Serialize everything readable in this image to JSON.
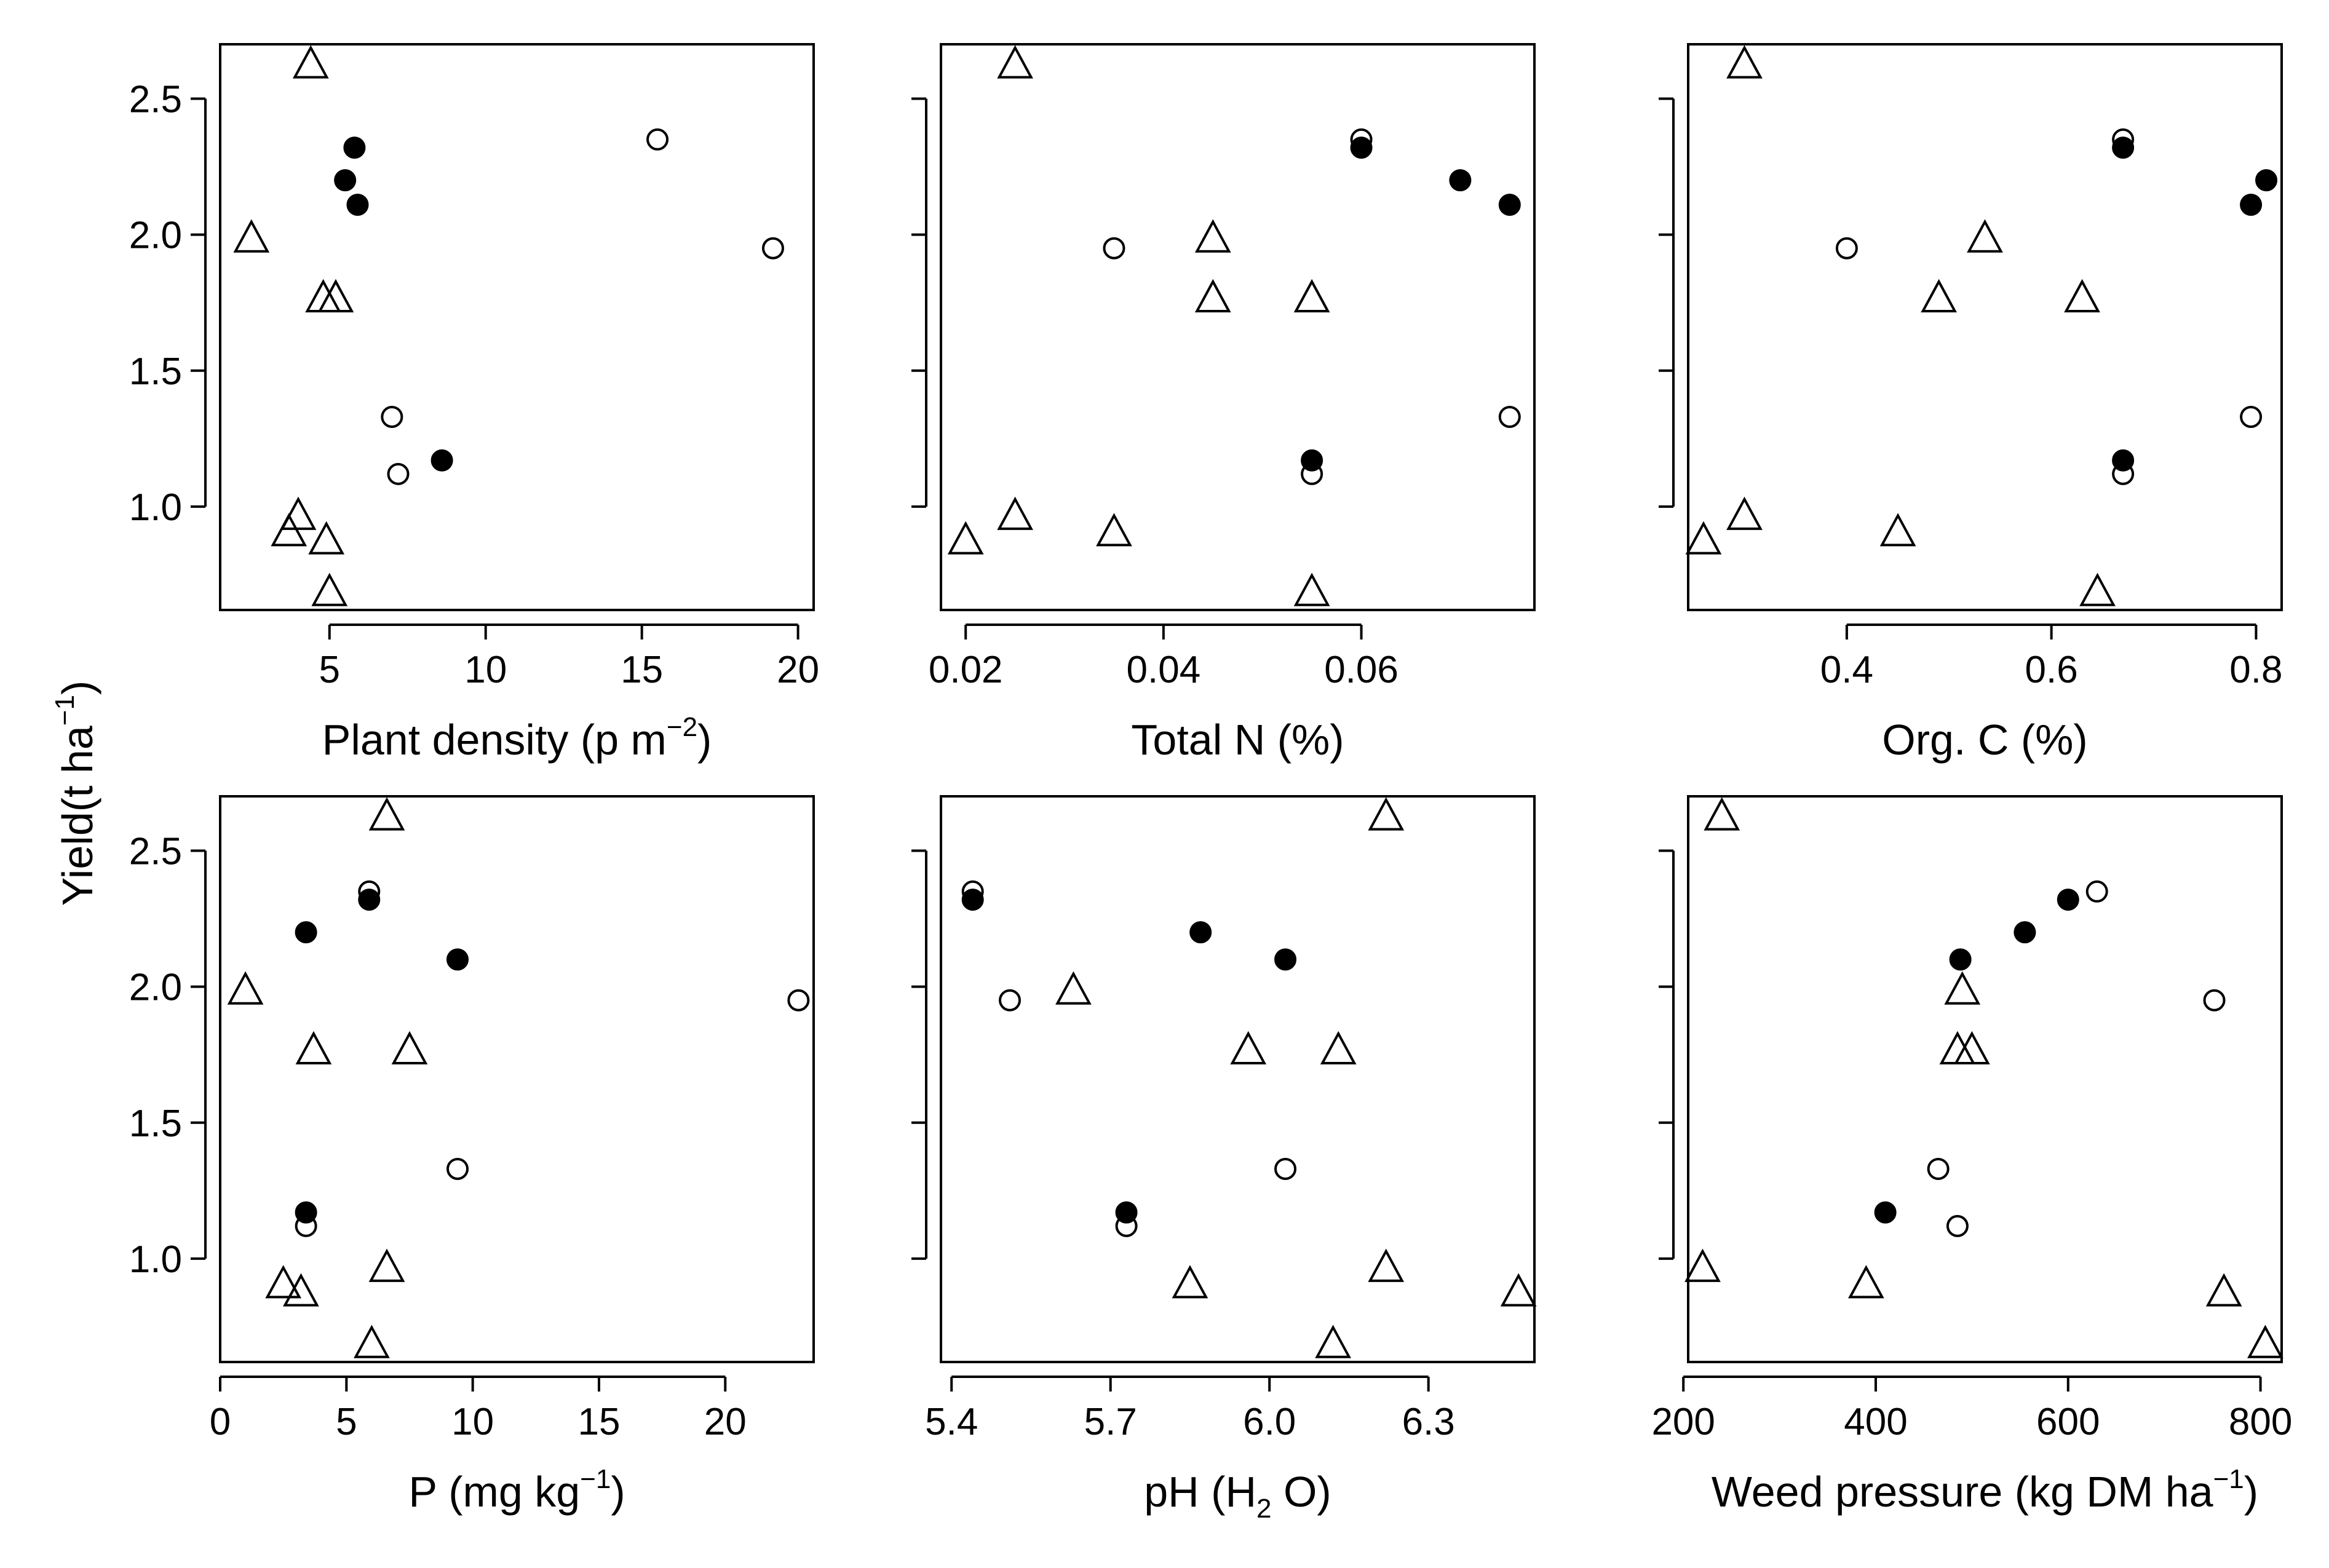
{
  "figure": {
    "shared_ylabel": "Yield(t ha",
    "shared_ylabel_sup": "−1",
    "shared_ylabel_close": ")",
    "colors": {
      "axis": "#000000",
      "marker_fill_solid": "#000000",
      "marker_fill_hollow": "#ffffff"
    }
  },
  "chart_data": [
    {
      "type": "scatter",
      "id": "plant-density",
      "xlabel": {
        "pre": "Plant density (p m",
        "sup": "−2",
        "post": ")"
      },
      "xlim": [
        1.5,
        20.5
      ],
      "xticks": [
        5,
        10,
        15,
        20
      ],
      "xtick_labels": [
        "5",
        "10",
        "15",
        "20"
      ],
      "ylim": [
        0.62,
        2.7
      ],
      "yticks": [
        1.0,
        1.5,
        2.0,
        2.5
      ],
      "ytick_labels": [
        "1.0",
        "1.5",
        "2.0",
        "2.5"
      ],
      "series": [
        {
          "name": "triangles",
          "marker": "triangle-open",
          "x": [
            4.4,
            2.5,
            4.8,
            5.2,
            4.0,
            3.7,
            4.9,
            5.0
          ],
          "y": [
            2.62,
            1.98,
            1.76,
            1.76,
            0.96,
            0.9,
            0.87,
            0.68
          ]
        },
        {
          "name": "open-circles",
          "marker": "circle-open",
          "x": [
            15.5,
            19.2,
            7.0,
            7.2
          ],
          "y": [
            2.35,
            1.95,
            1.33,
            1.12
          ]
        },
        {
          "name": "filled-circles",
          "marker": "circle-filled",
          "x": [
            5.8,
            5.5,
            5.9,
            8.6
          ],
          "y": [
            2.32,
            2.2,
            2.11,
            1.17
          ]
        }
      ]
    },
    {
      "type": "scatter",
      "id": "total-n",
      "xlabel": {
        "pre": "Total N (%)",
        "sup": "",
        "post": ""
      },
      "xlim": [
        0.0175,
        0.0775
      ],
      "xticks": [
        0.02,
        0.04,
        0.06
      ],
      "xtick_labels": [
        "0.02",
        "0.04",
        "0.06"
      ],
      "ylim": [
        0.62,
        2.7
      ],
      "yticks": [
        1.0,
        1.5,
        2.0,
        2.5
      ],
      "ytick_labels": [
        "",
        "",
        "",
        ""
      ],
      "series": [
        {
          "name": "triangles",
          "marker": "triangle-open",
          "x": [
            0.025,
            0.045,
            0.045,
            0.055,
            0.025,
            0.035,
            0.02,
            0.055
          ],
          "y": [
            2.62,
            1.98,
            1.76,
            1.76,
            0.96,
            0.9,
            0.87,
            0.68
          ]
        },
        {
          "name": "open-circles",
          "marker": "circle-open",
          "x": [
            0.06,
            0.035,
            0.075,
            0.055
          ],
          "y": [
            2.35,
            1.95,
            1.33,
            1.12
          ]
        },
        {
          "name": "filled-circles",
          "marker": "circle-filled",
          "x": [
            0.06,
            0.07,
            0.075,
            0.055
          ],
          "y": [
            2.32,
            2.2,
            2.11,
            1.17
          ]
        }
      ]
    },
    {
      "type": "scatter",
      "id": "org-c",
      "xlabel": {
        "pre": "Org. C (%)",
        "sup": "",
        "post": ""
      },
      "xlim": [
        0.245,
        0.825
      ],
      "xticks": [
        0.4,
        0.6,
        0.8
      ],
      "xtick_labels": [
        "0.4",
        "0.6",
        "0.8"
      ],
      "ylim": [
        0.62,
        2.7
      ],
      "yticks": [
        1.0,
        1.5,
        2.0,
        2.5
      ],
      "ytick_labels": [
        "",
        "",
        "",
        ""
      ],
      "series": [
        {
          "name": "triangles",
          "marker": "triangle-open",
          "x": [
            0.3,
            0.535,
            0.49,
            0.63,
            0.3,
            0.45,
            0.26,
            0.645
          ],
          "y": [
            2.62,
            1.98,
            1.76,
            1.76,
            0.96,
            0.9,
            0.87,
            0.68
          ]
        },
        {
          "name": "open-circles",
          "marker": "circle-open",
          "x": [
            0.67,
            0.4,
            0.795,
            0.67
          ],
          "y": [
            2.35,
            1.95,
            1.33,
            1.12
          ]
        },
        {
          "name": "filled-circles",
          "marker": "circle-filled",
          "x": [
            0.67,
            0.81,
            0.795,
            0.67
          ],
          "y": [
            2.32,
            2.2,
            2.11,
            1.17
          ]
        }
      ]
    },
    {
      "type": "scatter",
      "id": "phosphorus",
      "xlabel": {
        "pre": "P (mg kg",
        "sup": "−1",
        "post": ")"
      },
      "xlim": [
        0.0,
        23.5
      ],
      "xticks": [
        0,
        5,
        10,
        15,
        20
      ],
      "xtick_labels": [
        "0",
        "5",
        "10",
        "15",
        "20"
      ],
      "ylim": [
        0.62,
        2.7
      ],
      "yticks": [
        1.0,
        1.5,
        2.0,
        2.5
      ],
      "ytick_labels": [
        "1.0",
        "1.5",
        "2.0",
        "2.5"
      ],
      "series": [
        {
          "name": "triangles",
          "marker": "triangle-open",
          "x": [
            6.6,
            1.0,
            3.7,
            7.5,
            6.6,
            2.5,
            3.2,
            6.0
          ],
          "y": [
            2.62,
            1.98,
            1.76,
            1.76,
            0.96,
            0.9,
            0.87,
            0.68
          ]
        },
        {
          "name": "open-circles",
          "marker": "circle-open",
          "x": [
            5.9,
            22.9,
            9.4,
            3.4
          ],
          "y": [
            2.35,
            1.95,
            1.33,
            1.12
          ]
        },
        {
          "name": "filled-circles",
          "marker": "circle-filled",
          "x": [
            5.9,
            3.4,
            9.4,
            3.4
          ],
          "y": [
            2.32,
            2.2,
            2.1,
            1.17
          ]
        }
      ]
    },
    {
      "type": "scatter",
      "id": "ph",
      "xlabel": {
        "pre": "pH (H",
        "sub": "2",
        "post": " O)"
      },
      "xlim": [
        5.38,
        6.5
      ],
      "xticks": [
        5.4,
        5.7,
        6.0,
        6.3
      ],
      "xtick_labels": [
        "5.4",
        "5.7",
        "6.0",
        "6.3"
      ],
      "ylim": [
        0.62,
        2.7
      ],
      "yticks": [
        1.0,
        1.5,
        2.0,
        2.5
      ],
      "ytick_labels": [
        "",
        "",
        "",
        ""
      ],
      "series": [
        {
          "name": "triangles",
          "marker": "triangle-open",
          "x": [
            6.22,
            5.63,
            5.96,
            6.13,
            6.22,
            5.85,
            6.47,
            6.12
          ],
          "y": [
            2.62,
            1.98,
            1.76,
            1.76,
            0.96,
            0.9,
            0.87,
            0.68
          ]
        },
        {
          "name": "open-circles",
          "marker": "circle-open",
          "x": [
            5.44,
            5.51,
            6.03,
            5.73
          ],
          "y": [
            2.35,
            1.95,
            1.33,
            1.12
          ]
        },
        {
          "name": "filled-circles",
          "marker": "circle-filled",
          "x": [
            5.44,
            5.87,
            6.03,
            5.73
          ],
          "y": [
            2.32,
            2.2,
            2.1,
            1.17
          ]
        }
      ]
    },
    {
      "type": "scatter",
      "id": "weed-pressure",
      "xlabel": {
        "pre": "Weed pressure (kg DM ha",
        "sup": "−1",
        "post": ")"
      },
      "xlim": [
        205,
        822
      ],
      "xticks": [
        200,
        400,
        600,
        800
      ],
      "xtick_labels": [
        "200",
        "400",
        "600",
        "800"
      ],
      "ylim": [
        0.62,
        2.7
      ],
      "yticks": [
        1.0,
        1.5,
        2.0,
        2.5
      ],
      "ytick_labels": [
        "",
        "",
        "",
        ""
      ],
      "series": [
        {
          "name": "triangles",
          "marker": "triangle-open",
          "x": [
            240,
            490,
            485,
            500,
            220,
            390,
            762,
            805
          ],
          "y": [
            2.62,
            1.98,
            1.76,
            1.76,
            0.96,
            0.9,
            0.87,
            0.68
          ]
        },
        {
          "name": "open-circles",
          "marker": "circle-open",
          "x": [
            630,
            752,
            465,
            485
          ],
          "y": [
            2.35,
            1.95,
            1.33,
            1.12
          ]
        },
        {
          "name": "filled-circles",
          "marker": "circle-filled",
          "x": [
            600,
            555,
            488,
            410
          ],
          "y": [
            2.32,
            2.2,
            2.1,
            1.17
          ]
        }
      ]
    }
  ]
}
